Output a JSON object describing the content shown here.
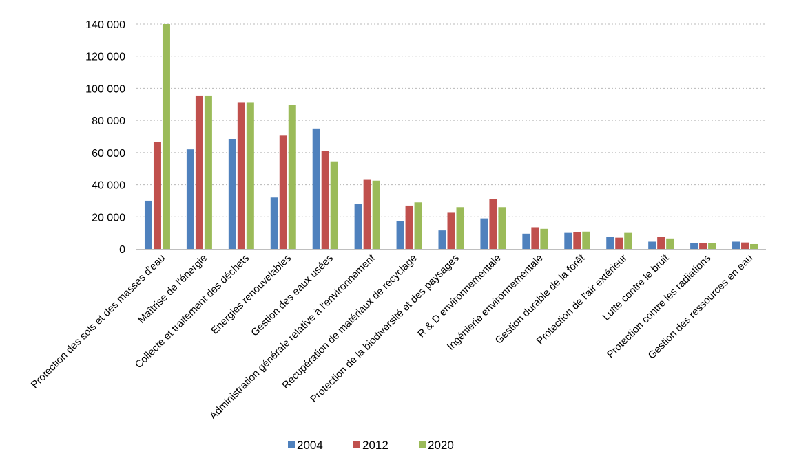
{
  "chart_data": {
    "type": "bar",
    "title": "",
    "xlabel": "",
    "ylabel": "",
    "ylim": [
      0,
      140000
    ],
    "yticks": [
      0,
      20000,
      40000,
      60000,
      80000,
      100000,
      120000,
      140000
    ],
    "ytick_labels": [
      "0",
      "20 000",
      "40 000",
      "60 000",
      "80 000",
      "100 000",
      "120 000",
      "140 000"
    ],
    "grid": true,
    "legend_position": "bottom",
    "categories": [
      "Protection des sols et des masses d'eau",
      "Maîtrise de l'énergie",
      "Collecte et traitement des déchets",
      "Energies renouvelables",
      "Gestion des eaux usées",
      "Administration générale relative à l'environnement",
      "Récupération de matériaux de recyclage",
      "Protection de la biodiversité et des paysages",
      "R & D environnementale",
      "Ingénierie environnementale",
      "Gestion durable de la forêt",
      "Protection de l'air extérieur",
      "Lutte contre le bruit",
      "Protection contre les radiations",
      "Gestion des ressources en eau"
    ],
    "series": [
      {
        "name": "2004",
        "color": "#4f81bd",
        "values": [
          30000,
          62000,
          68500,
          32000,
          75000,
          28000,
          17500,
          11500,
          19000,
          9500,
          10000,
          7500,
          4500,
          3500,
          4500
        ]
      },
      {
        "name": "2012",
        "color": "#c0504d",
        "values": [
          66500,
          95500,
          91000,
          70500,
          61000,
          43000,
          27000,
          22500,
          31000,
          13500,
          10500,
          7000,
          7500,
          3800,
          4000
        ]
      },
      {
        "name": "2020",
        "color": "#9bbb59",
        "values": [
          140000,
          95500,
          91000,
          89500,
          54500,
          42500,
          29000,
          26000,
          26000,
          12500,
          10800,
          10000,
          6500,
          3800,
          3000
        ]
      }
    ]
  }
}
